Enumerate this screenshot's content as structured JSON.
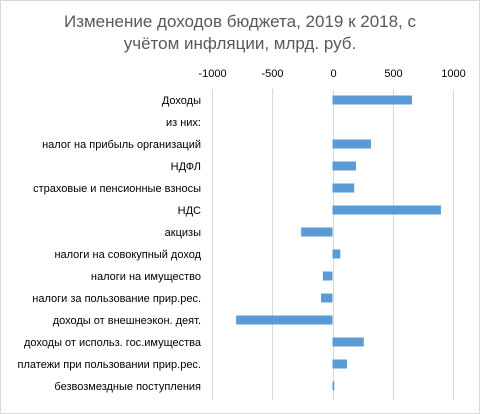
{
  "chart_data": {
    "type": "bar",
    "orientation": "horizontal",
    "title_lines": [
      "Изменение доходов бюджета, 2019 к 2018, с",
      "учётом инфляции, млрд. руб."
    ],
    "categories": [
      "Доходы",
      "из них:",
      "налог на прибыль организаций",
      "НДФЛ",
      "страховые и пенсионные взносы",
      "НДС",
      "акцизы",
      "налоги на совокупный доход",
      "налоги на имущество",
      "налоги за пользование прир.рес.",
      "доходы от внешнеэкон. деят.",
      "доходы от использ. гос.имущества",
      "платежи при пользовании прир.рес.",
      "безвозмездные поступления"
    ],
    "values": [
      660,
      null,
      320,
      195,
      180,
      900,
      -260,
      65,
      -80,
      -95,
      -800,
      260,
      120,
      15
    ],
    "xlim": [
      -1000,
      1000
    ],
    "ticks": [
      -1000,
      -500,
      0,
      500,
      1000
    ],
    "tick_labels": [
      "-1000",
      "-500",
      "0",
      "500",
      "1000"
    ],
    "axis_position": "top",
    "grid": "vertical",
    "bar_color": "#5b9bd5"
  }
}
